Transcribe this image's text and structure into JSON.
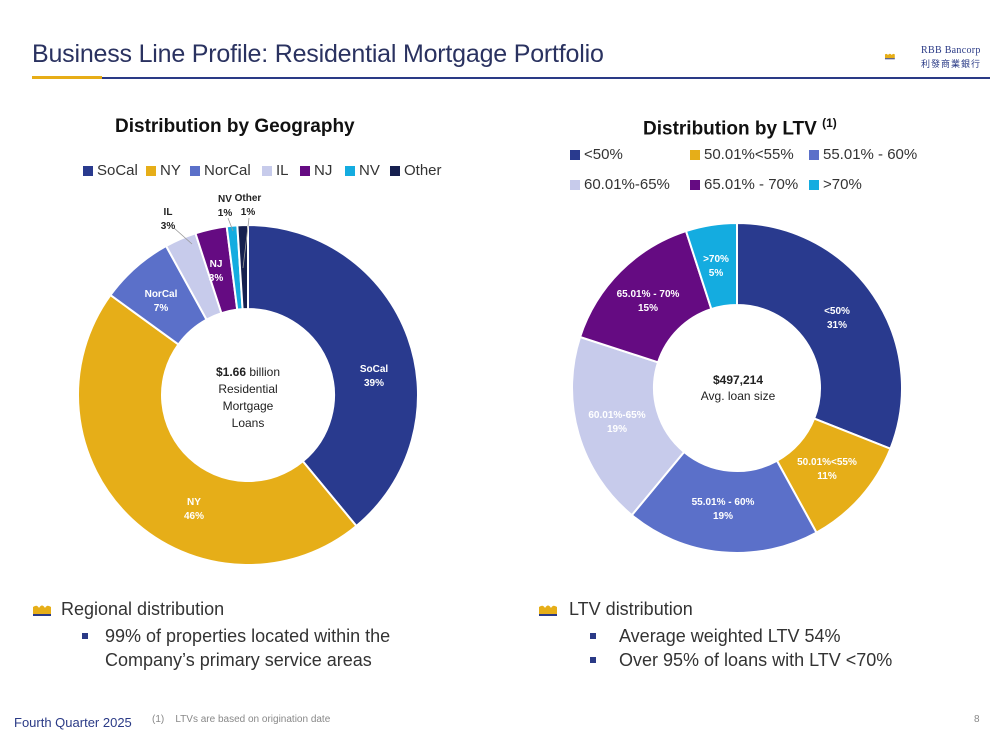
{
  "header": {
    "title": "Business Line Profile: Residential Mortgage Portfolio",
    "brand_line1": "RBB Bancorp",
    "brand_line2": "利發商業銀行"
  },
  "colors": {
    "navy": "#293a8e",
    "gold": "#e6ae18",
    "periwinkle": "#5b70c9",
    "lavender": "#c7cbeb",
    "purple": "#650b82",
    "cyan": "#14ace0",
    "darknavy": "#16204f",
    "accent_blue": "#2a3a86"
  },
  "chart_data": [
    {
      "type": "pie",
      "title": "Distribution by Geography",
      "categories": [
        "SoCal",
        "NY",
        "NorCal",
        "IL",
        "NJ",
        "NV",
        "Other"
      ],
      "values": [
        39,
        46,
        7,
        3,
        3,
        1,
        1
      ],
      "value_labels": [
        "39%",
        "46%",
        "7%",
        "3%",
        "3%",
        "1%",
        "1%"
      ],
      "center_amount": "$1.66",
      "center_unit": " billion",
      "center_lines": [
        "Residential",
        "Mortgage",
        "Loans"
      ],
      "legend_position": "top"
    },
    {
      "type": "pie",
      "title": "Distribution by LTV",
      "title_note": "(1)",
      "categories": [
        "<50%",
        "50.01%<55%",
        "55.01% - 60%",
        "60.01%-65%",
        "65.01% - 70%",
        ">70%"
      ],
      "values": [
        31,
        11,
        19,
        19,
        15,
        5
      ],
      "value_labels": [
        "31%",
        "11%",
        "19%",
        "19%",
        "15%",
        "5%"
      ],
      "center_amount": "$497,214",
      "center_lines": [
        "Avg. loan size"
      ],
      "legend_position": "top"
    }
  ],
  "bullets": {
    "left": {
      "heading": "Regional distribution",
      "items": [
        "99% of properties located within the Company’s primary service areas"
      ]
    },
    "right": {
      "heading": "LTV distribution",
      "items": [
        "Average weighted LTV 54%",
        "Over 95% of loans with LTV <70%"
      ]
    }
  },
  "footer": {
    "quarter": "Fourth Quarter 2025",
    "footnote_marker": "(1)",
    "footnote_text": "LTVs are based on origination date",
    "page_number": "8"
  }
}
